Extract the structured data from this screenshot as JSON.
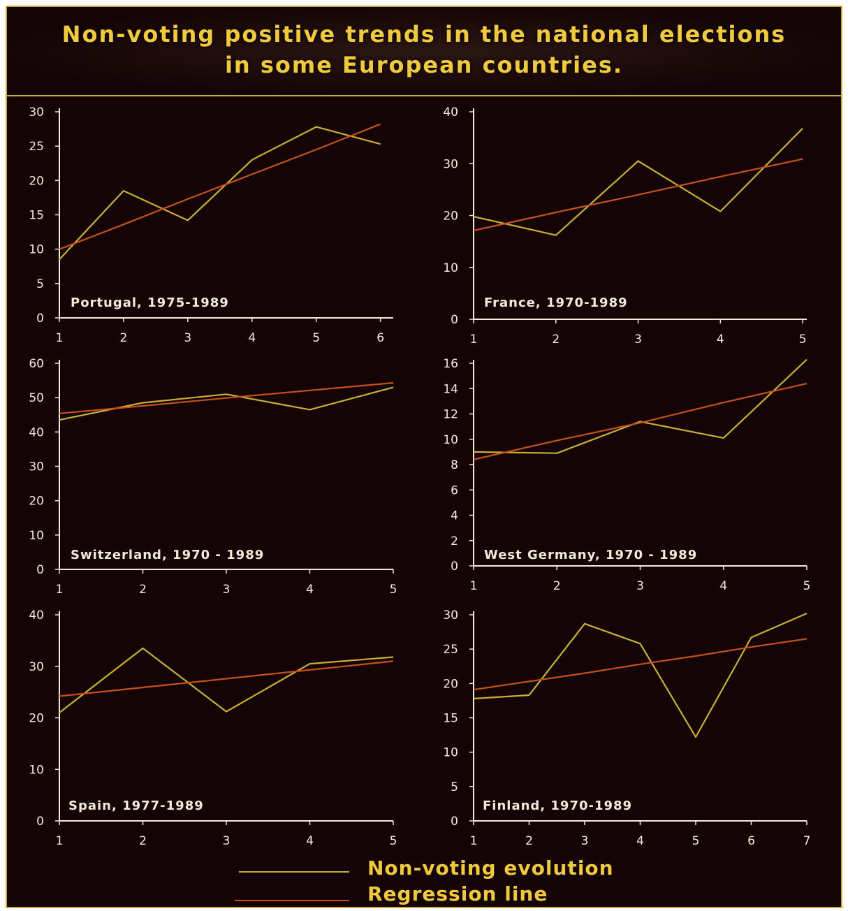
{
  "title": {
    "line1": "Non-voting positive trends in the national elections",
    "line2": "in some European countries."
  },
  "colors": {
    "background": "#140406",
    "frame": "#c9a83c",
    "title_text": "#f1c93c",
    "axis": "#f2ecd6",
    "non_voting_line": "#c9b035",
    "regression_line": "#c8501a"
  },
  "legend": {
    "non_voting": "Non-voting evolution",
    "regression": "Regression line"
  },
  "chart_data": [
    {
      "type": "line",
      "title": "Portugal, 1975-1989",
      "x": [
        1,
        2,
        3,
        4,
        5,
        6
      ],
      "xlim": [
        1,
        6.2
      ],
      "ylim": [
        0,
        30
      ],
      "yticks": [
        0,
        5,
        10,
        15,
        20,
        25,
        30
      ],
      "series": [
        {
          "name": "Non-voting evolution",
          "values": [
            8.5,
            18.5,
            14.2,
            23,
            27.8,
            25.3
          ]
        },
        {
          "name": "Regression line",
          "values": [
            10,
            13.6,
            17.3,
            20.9,
            24.5,
            28.2
          ]
        }
      ]
    },
    {
      "type": "line",
      "title": "France, 1970-1989",
      "x": [
        1,
        2,
        3,
        4,
        5
      ],
      "xlim": [
        1,
        5.05
      ],
      "ylim": [
        0,
        40
      ],
      "yticks": [
        0,
        10,
        20,
        30,
        40
      ],
      "series": [
        {
          "name": "Non-voting evolution",
          "values": [
            19.8,
            16.2,
            30.5,
            20.8,
            36.8
          ]
        },
        {
          "name": "Regression line",
          "values": [
            17.1,
            20.6,
            24.0,
            27.5,
            30.9
          ]
        }
      ]
    },
    {
      "type": "line",
      "title": "Switzerland, 1970 - 1989",
      "x": [
        1,
        2,
        3,
        4,
        5
      ],
      "xlim": [
        1,
        5
      ],
      "ylim": [
        0,
        60
      ],
      "yticks": [
        0,
        10,
        20,
        30,
        40,
        50,
        60
      ],
      "series": [
        {
          "name": "Non-voting evolution",
          "values": [
            43.5,
            48.5,
            51,
            46.5,
            53
          ]
        },
        {
          "name": "Regression line",
          "values": [
            45.4,
            47.6,
            49.9,
            52.1,
            54.3
          ]
        }
      ]
    },
    {
      "type": "line",
      "title": "West Germany, 1970 - 1989",
      "x": [
        1,
        2,
        3,
        4,
        5
      ],
      "xlim": [
        1,
        5
      ],
      "ylim": [
        0,
        16
      ],
      "yticks": [
        0,
        2,
        4,
        6,
        8,
        10,
        12,
        14,
        16
      ],
      "series": [
        {
          "name": "Non-voting evolution",
          "values": [
            9.0,
            8.9,
            11.4,
            10.1,
            16.3
          ]
        },
        {
          "name": "Regression line",
          "values": [
            8.4,
            9.9,
            11.3,
            12.9,
            14.4
          ]
        }
      ]
    },
    {
      "type": "line",
      "title": "Spain, 1977-1989",
      "x": [
        1,
        2,
        3,
        4,
        5
      ],
      "xlim": [
        1,
        5
      ],
      "ylim": [
        0,
        40
      ],
      "yticks": [
        0,
        10,
        20,
        30,
        40
      ],
      "series": [
        {
          "name": "Non-voting evolution",
          "values": [
            21,
            33.5,
            21.2,
            30.5,
            31.8
          ]
        },
        {
          "name": "Regression line",
          "values": [
            24.2,
            25.9,
            27.6,
            29.3,
            31.0
          ]
        }
      ]
    },
    {
      "type": "line",
      "title": "Finland, 1970-1989",
      "x": [
        1,
        2,
        3,
        4,
        5,
        6,
        7
      ],
      "xlim": [
        1,
        7
      ],
      "ylim": [
        0,
        30
      ],
      "yticks": [
        0,
        5,
        10,
        15,
        20,
        25,
        30
      ],
      "series": [
        {
          "name": "Non-voting evolution",
          "values": [
            17.8,
            18.3,
            28.7,
            25.8,
            12.2,
            26.7,
            30.2
          ]
        },
        {
          "name": "Regression line",
          "values": [
            19.1,
            20.3,
            21.5,
            22.8,
            24.0,
            25.3,
            26.5
          ]
        }
      ]
    }
  ]
}
